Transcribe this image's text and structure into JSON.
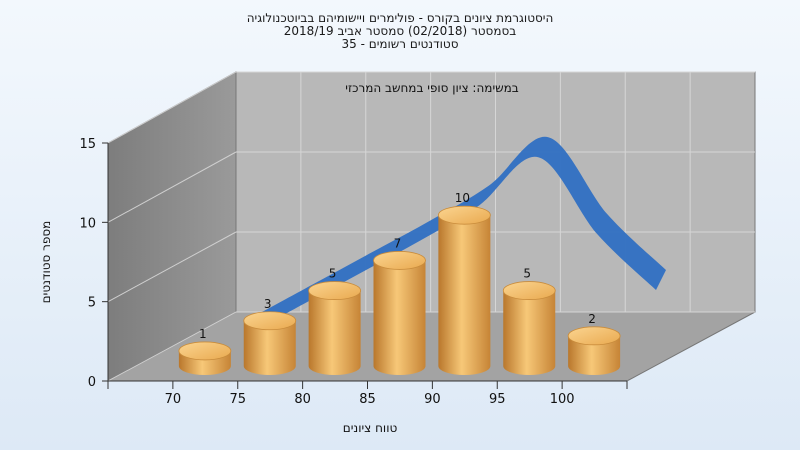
{
  "chart_data": {
    "type": "bar",
    "title_lines": [
      "היסטוגרמת ציונים בקורס - פולימרים ויישומיהם בביוטכנולוגיה",
      "בסמסטר  (02/2018)  סמסטר אביב 2018/19",
      "סטודנטים רשומים - 35"
    ],
    "annotation": "במשימה: ציון סופי במחשב המרכזי",
    "xlabel": "טווח ציונים",
    "ylabel": "מספר סטודנטים",
    "categories": [
      "70",
      "75",
      "80",
      "85",
      "90",
      "95",
      "100"
    ],
    "values": [
      1,
      3,
      5,
      7,
      10,
      5,
      2
    ],
    "data_labels": [
      "1",
      "3",
      "5",
      "7",
      "10",
      "5",
      "2"
    ],
    "y_ticks": [
      "0",
      "5",
      "10",
      "15"
    ],
    "ylim": [
      0,
      15
    ],
    "grid": true,
    "curve": {
      "type": "line",
      "values": [
        1.6,
        3.6,
        5.6,
        7.6,
        9.8,
        12.8,
        8.0,
        4.5
      ]
    },
    "colors": {
      "bar_body": "#e3a24f",
      "bar_top": "#f4c068",
      "curve": "#2f6fc2",
      "wall": "#b5b5b5",
      "side_wall": "#8a8a8a",
      "floor": "#a6a6a6"
    }
  }
}
